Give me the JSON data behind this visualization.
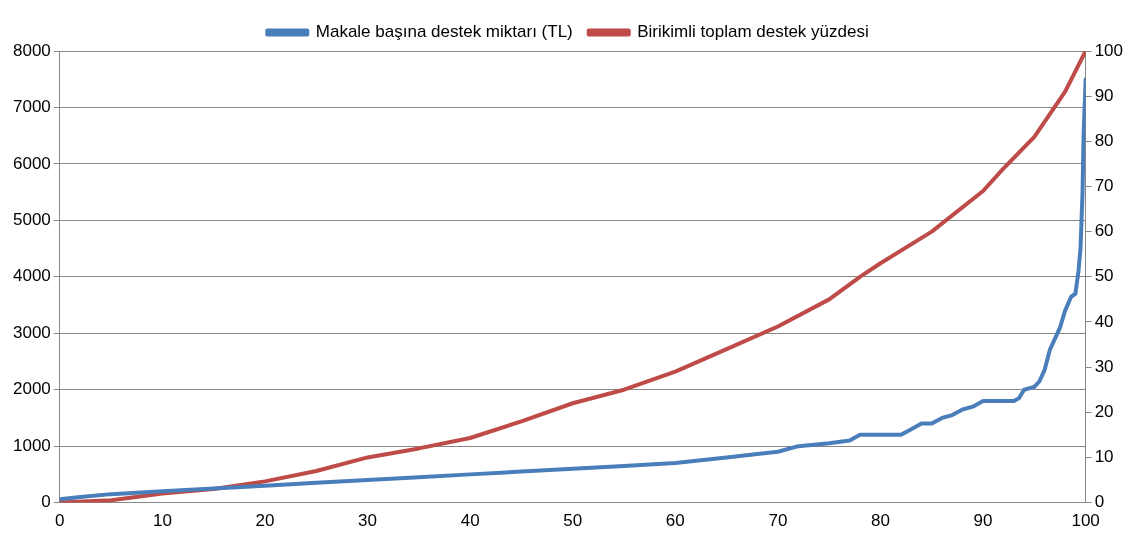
{
  "chart_data": {
    "type": "line",
    "legend": "top",
    "grid": "y",
    "marker": "none",
    "line_style": "solid",
    "xlim": [
      0,
      100
    ],
    "xticks": [
      0,
      10,
      20,
      30,
      40,
      50,
      60,
      70,
      80,
      90,
      100
    ],
    "ylim": [
      0,
      8000
    ],
    "yticks": [
      0,
      1000,
      2000,
      3000,
      4000,
      5000,
      6000,
      7000,
      8000
    ],
    "y2lim": [
      0,
      100
    ],
    "y2ticks": [
      0,
      10,
      20,
      30,
      40,
      50,
      60,
      70,
      80,
      90,
      100
    ],
    "series": [
      {
        "name": "Makale başına destek miktarı (TL)",
        "color": "#4a7ebb",
        "x": [
          0,
          2,
          5,
          10,
          15,
          20,
          25,
          30,
          35,
          40,
          45,
          50,
          55,
          60,
          65,
          70,
          72,
          75,
          77,
          78,
          80,
          82,
          83,
          84,
          85,
          86,
          87,
          88,
          89,
          90,
          91,
          93,
          93.5,
          94,
          95,
          95.5,
          96,
          96.5,
          97,
          97.5,
          98,
          98.6,
          99,
          99.3,
          99.5,
          99.7,
          99.8,
          100
        ],
        "values": [
          60,
          100,
          150,
          200,
          250,
          300,
          350,
          400,
          450,
          500,
          550,
          600,
          650,
          700,
          800,
          900,
          1000,
          1050,
          1100,
          1200,
          1200,
          1200,
          1300,
          1400,
          1400,
          1500,
          1550,
          1650,
          1700,
          1800,
          1800,
          1800,
          1850,
          2000,
          2050,
          2150,
          2350,
          2700,
          2900,
          3100,
          3400,
          3650,
          3700,
          4100,
          4500,
          5500,
          6500,
          7500
        ]
      },
      {
        "name": "Birikimli toplam destek yüzdesi",
        "color": "#be4b48",
        "axis": "y2",
        "x": [
          0,
          5,
          10,
          15,
          20,
          25,
          30,
          35,
          40,
          45,
          50,
          55,
          60,
          65,
          70,
          75,
          78,
          80,
          85,
          90,
          92,
          95,
          98,
          100
        ],
        "values": [
          0,
          0.5,
          2,
          3,
          4.7,
          7,
          10,
          12,
          14.3,
          18,
          22,
          25,
          29,
          34,
          39,
          45,
          50,
          53,
          60,
          69,
          74,
          81,
          91,
          100
        ]
      }
    ]
  }
}
